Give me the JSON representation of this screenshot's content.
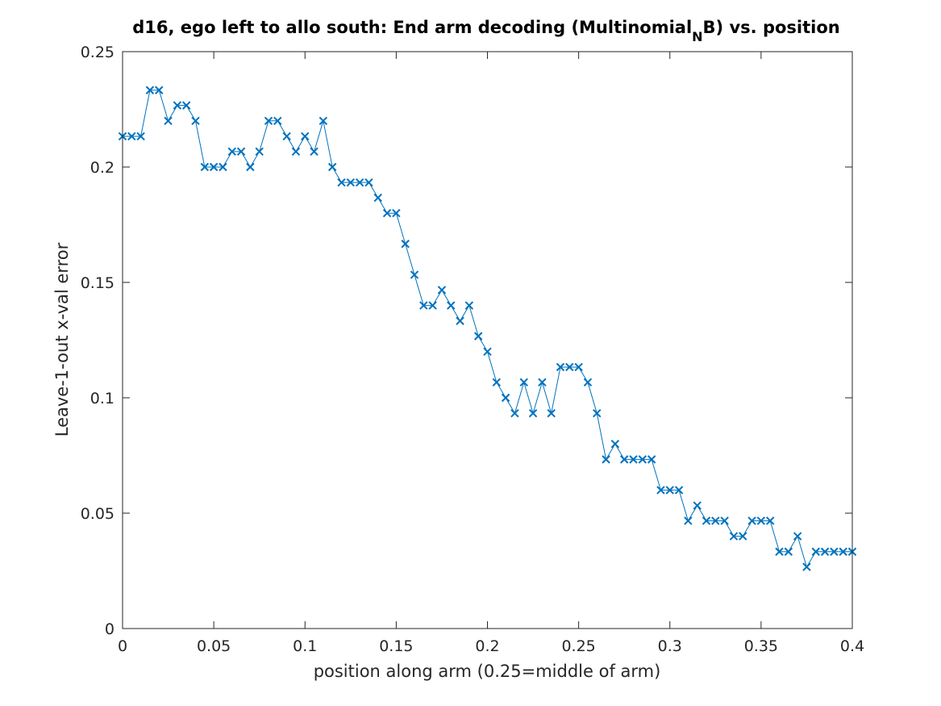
{
  "chart_data": {
    "type": "line",
    "title": {
      "main": "d16, ego left to allo south: End arm decoding (Multinomial",
      "subscript": "N",
      "tail": "B) vs. position"
    },
    "xlabel": "position along arm (0.25=middle of arm)",
    "ylabel": "Leave-1-out x-val error",
    "xlim": [
      0,
      0.4
    ],
    "ylim": [
      0,
      0.25
    ],
    "xticks": [
      0,
      0.05,
      0.1,
      0.15,
      0.2,
      0.25,
      0.3,
      0.35,
      0.4
    ],
    "xtick_labels": [
      "0",
      "0.05",
      "0.1",
      "0.15",
      "0.2",
      "0.25",
      "0.3",
      "0.35",
      "0.4"
    ],
    "yticks": [
      0,
      0.05,
      0.1,
      0.15,
      0.2,
      0.25
    ],
    "ytick_labels": [
      "0",
      "0.05",
      "0.1",
      "0.15",
      "0.2",
      "0.25"
    ],
    "grid": false,
    "marker": "x",
    "color": "#0072BD",
    "x": [
      0,
      0.005,
      0.01,
      0.015,
      0.02,
      0.025,
      0.03,
      0.035,
      0.04,
      0.045,
      0.05,
      0.055,
      0.06,
      0.065,
      0.07,
      0.075,
      0.08,
      0.085,
      0.09,
      0.095,
      0.1,
      0.105,
      0.11,
      0.115,
      0.12,
      0.125,
      0.13,
      0.135,
      0.14,
      0.145,
      0.15,
      0.155,
      0.16,
      0.165,
      0.17,
      0.175,
      0.18,
      0.185,
      0.19,
      0.195,
      0.2,
      0.205,
      0.21,
      0.215,
      0.22,
      0.225,
      0.23,
      0.235,
      0.24,
      0.245,
      0.25,
      0.255,
      0.26,
      0.265,
      0.27,
      0.275,
      0.28,
      0.285,
      0.29,
      0.295,
      0.3,
      0.305,
      0.31,
      0.315,
      0.32,
      0.325,
      0.33,
      0.335,
      0.34,
      0.345,
      0.35,
      0.355,
      0.36,
      0.365,
      0.37,
      0.375,
      0.38,
      0.385,
      0.39,
      0.395,
      0.4
    ],
    "y": [
      0.2133,
      0.2133,
      0.2133,
      0.2333,
      0.2333,
      0.22,
      0.2267,
      0.2267,
      0.22,
      0.2,
      0.2,
      0.2,
      0.2067,
      0.2067,
      0.2,
      0.2067,
      0.22,
      0.22,
      0.2133,
      0.2067,
      0.2133,
      0.2067,
      0.22,
      0.2,
      0.1933,
      0.1933,
      0.1933,
      0.1933,
      0.1867,
      0.18,
      0.18,
      0.1667,
      0.1533,
      0.14,
      0.14,
      0.1467,
      0.14,
      0.1333,
      0.14,
      0.1267,
      0.12,
      0.1067,
      0.1,
      0.0933,
      0.1067,
      0.0933,
      0.1067,
      0.0933,
      0.1133,
      0.1133,
      0.1133,
      0.1067,
      0.0933,
      0.0733,
      0.08,
      0.0733,
      0.0733,
      0.0733,
      0.0733,
      0.06,
      0.06,
      0.06,
      0.0467,
      0.0533,
      0.0467,
      0.0467,
      0.0467,
      0.04,
      0.04,
      0.0467,
      0.0467,
      0.0467,
      0.0333,
      0.0333,
      0.04,
      0.0267,
      0.0333,
      0.0333,
      0.0333,
      0.0333,
      0.0333
    ]
  }
}
